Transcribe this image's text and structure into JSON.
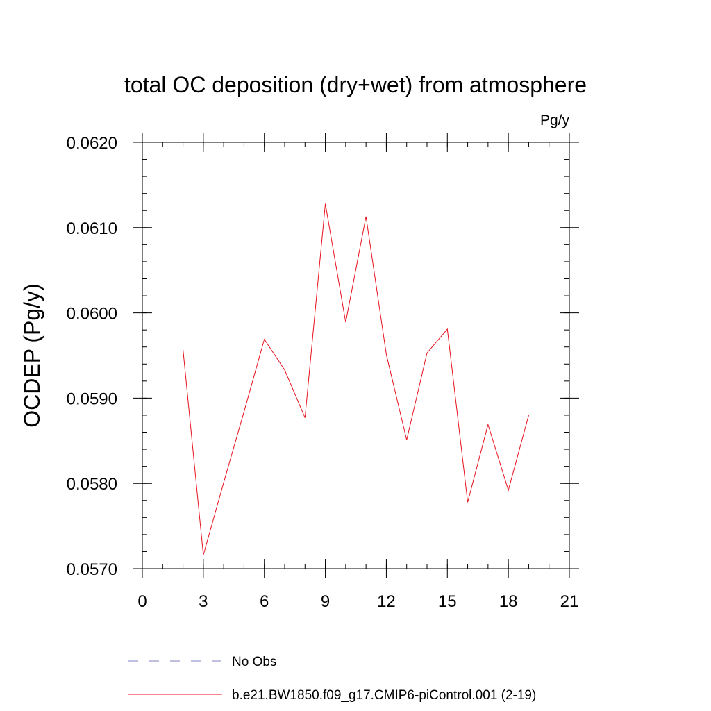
{
  "chart_data": {
    "type": "line",
    "title": "total OC deposition (dry+wet) from atmosphere",
    "units": "Pg/y",
    "xlabel": "",
    "ylabel": "OCDEP  (Pg/y)",
    "xlim": [
      0,
      21
    ],
    "ylim": [
      0.057,
      0.062
    ],
    "x_ticks": [
      0,
      3,
      6,
      9,
      12,
      15,
      18,
      21
    ],
    "x_tick_labels": [
      "0",
      "3",
      "6",
      "9",
      "12",
      "15",
      "18",
      "21"
    ],
    "x_minor_step": 1,
    "y_ticks": [
      0.057,
      0.058,
      0.059,
      0.06,
      0.061,
      0.062
    ],
    "y_tick_labels": [
      "0.0570",
      "0.0580",
      "0.0590",
      "0.0600",
      "0.0610",
      "0.0620"
    ],
    "y_minor_step": 0.0002,
    "grid": false,
    "legend_position": "bottom",
    "series": [
      {
        "name": "No Obs",
        "color": "#8080c0",
        "dash": "dashed",
        "x": [],
        "y": []
      },
      {
        "name": "b.e21.BW1850.f09_g17.CMIP6-piControl.001 (2-19)",
        "color": "#e8101c",
        "dash": "solid",
        "x": [
          2,
          3,
          4,
          5,
          6,
          7,
          8,
          9,
          10,
          11,
          12,
          13,
          14,
          15,
          16,
          17,
          18,
          19
        ],
        "y": [
          0.05957,
          0.05716,
          0.05801,
          0.05884,
          0.05969,
          0.05933,
          0.05877,
          0.06128,
          0.05989,
          0.06113,
          0.05951,
          0.05851,
          0.05953,
          0.05981,
          0.05778,
          0.05869,
          0.05792,
          0.0588
        ]
      }
    ]
  }
}
